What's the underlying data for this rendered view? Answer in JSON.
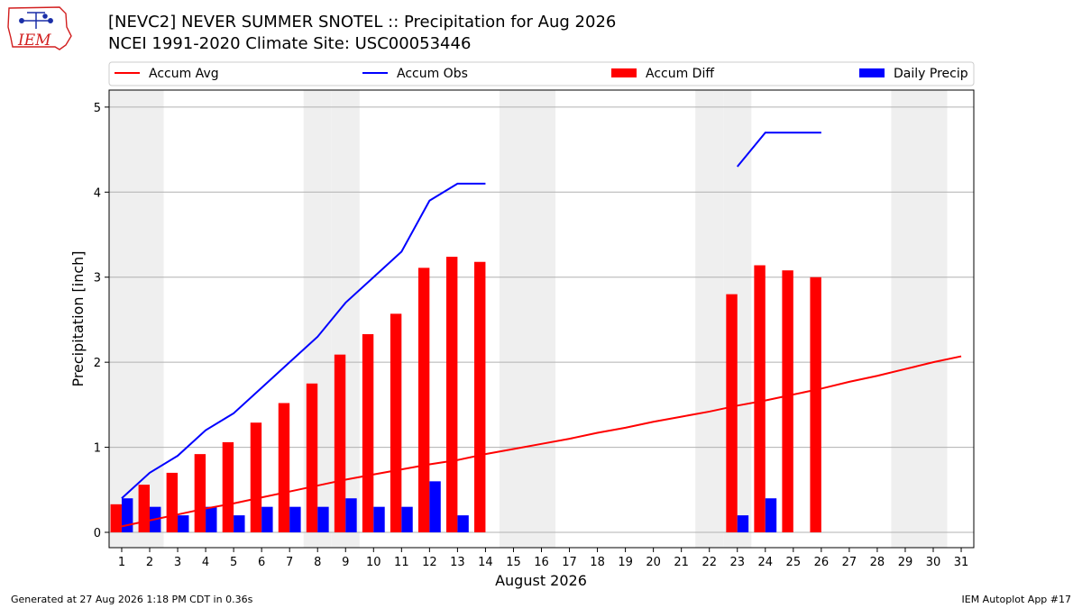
{
  "title_lines": [
    "[NEVC2] NEVER SUMMER SNOTEL :: Precipitation for Aug 2026",
    "NCEI 1991-2020 Climate Site: USC00053446"
  ],
  "logo": {
    "text": "IEM"
  },
  "footer": {
    "left": "Generated at 27 Aug 2026 1:18 PM CDT in 0.36s",
    "right": "IEM Autoplot App #17"
  },
  "colors": {
    "avg": "#ff0000",
    "obs": "#0000ff",
    "diff": "#ff0000",
    "daily": "#0000ff",
    "weekend_shade": "#efefef",
    "grid": "#b0b0b0"
  },
  "chart_data": {
    "type": "bar",
    "xlabel": "August 2026",
    "ylabel": "Precipitation [inch]",
    "xlim": [
      0.55,
      31.45
    ],
    "ylim": [
      -0.18,
      5.2
    ],
    "yticks": [
      0,
      1,
      2,
      3,
      4,
      5
    ],
    "grid": true,
    "legend_position": "top",
    "legend": [
      "Accum Avg",
      "Accum Obs",
      "Accum Diff",
      "Daily Precip"
    ],
    "days": [
      1,
      2,
      3,
      4,
      5,
      6,
      7,
      8,
      9,
      10,
      11,
      12,
      13,
      14,
      15,
      16,
      17,
      18,
      19,
      20,
      21,
      22,
      23,
      24,
      25,
      26,
      27,
      28,
      29,
      30,
      31
    ],
    "weekend_days": [
      1,
      2,
      8,
      9,
      15,
      16,
      22,
      23,
      29,
      30
    ],
    "series": [
      {
        "name": "Accum Avg",
        "type": "line",
        "x": [
          1,
          2,
          3,
          4,
          5,
          6,
          7,
          8,
          9,
          10,
          11,
          12,
          13,
          14,
          15,
          16,
          17,
          18,
          19,
          20,
          21,
          22,
          23,
          24,
          25,
          26,
          27,
          28,
          29,
          30,
          31
        ],
        "values": [
          0.07,
          0.14,
          0.21,
          0.28,
          0.34,
          0.41,
          0.48,
          0.55,
          0.62,
          0.68,
          0.74,
          0.8,
          0.85,
          0.92,
          0.98,
          1.04,
          1.1,
          1.17,
          1.23,
          1.3,
          1.36,
          1.42,
          1.49,
          1.55,
          1.62,
          1.69,
          1.77,
          1.84,
          1.92,
          2.0,
          2.07
        ]
      },
      {
        "name": "Accum Obs",
        "type": "line",
        "segments": [
          {
            "x": [
              1,
              2,
              3,
              4,
              5,
              6,
              7,
              8,
              9,
              10,
              11,
              12,
              13,
              14
            ],
            "values": [
              0.4,
              0.7,
              0.9,
              1.2,
              1.4,
              1.7,
              2.0,
              2.3,
              2.7,
              3.0,
              3.3,
              3.9,
              4.1,
              4.1
            ]
          },
          {
            "x": [
              23,
              24,
              25,
              26
            ],
            "values": [
              4.3,
              4.7,
              4.7,
              4.7
            ]
          }
        ]
      },
      {
        "name": "Accum Diff",
        "type": "bar",
        "x": [
          1,
          2,
          3,
          4,
          5,
          6,
          7,
          8,
          9,
          10,
          11,
          12,
          13,
          14,
          23,
          24,
          25,
          26
        ],
        "values": [
          0.33,
          0.56,
          0.7,
          0.92,
          1.06,
          1.29,
          1.52,
          1.75,
          2.09,
          2.33,
          2.57,
          3.11,
          3.24,
          3.18,
          2.8,
          3.14,
          3.08,
          3.0
        ]
      },
      {
        "name": "Daily Precip",
        "type": "bar",
        "x": [
          1,
          2,
          3,
          4,
          5,
          6,
          7,
          8,
          9,
          10,
          11,
          12,
          13,
          23,
          24
        ],
        "values": [
          0.4,
          0.3,
          0.2,
          0.3,
          0.2,
          0.3,
          0.3,
          0.3,
          0.4,
          0.3,
          0.3,
          0.6,
          0.2,
          0.2,
          0.4
        ]
      }
    ]
  }
}
